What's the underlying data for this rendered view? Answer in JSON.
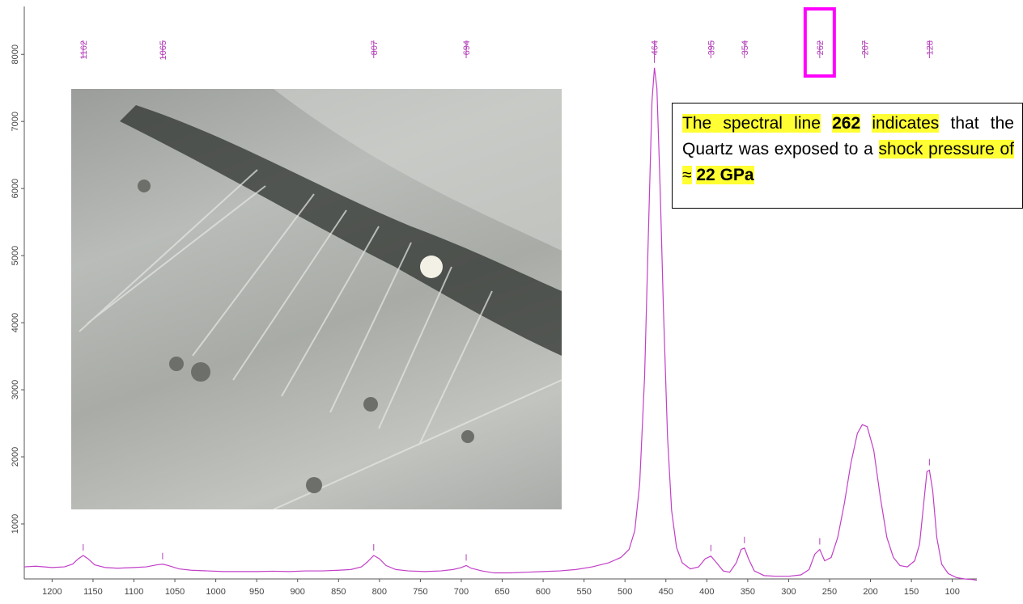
{
  "chart_data": {
    "type": "line",
    "xlim": [
      1234,
      70
    ],
    "ylim": [
      180,
      8690
    ],
    "xticks": [
      1200,
      1150,
      1100,
      1050,
      1000,
      950,
      900,
      850,
      800,
      750,
      700,
      650,
      600,
      550,
      500,
      450,
      400,
      350,
      300,
      250,
      200,
      150,
      100
    ],
    "yticks": [
      1000,
      2000,
      3000,
      4000,
      5000,
      6000,
      7000,
      8000
    ],
    "series": [
      {
        "name": "Raman spectrum",
        "color": "#c23fc8",
        "x": [
          1234,
          1220,
          1200,
          1185,
          1175,
          1168,
          1162,
          1156,
          1148,
          1135,
          1120,
          1100,
          1085,
          1072,
          1065,
          1058,
          1045,
          1030,
          1010,
          990,
          970,
          950,
          930,
          910,
          890,
          870,
          850,
          835,
          822,
          815,
          807,
          800,
          792,
          780,
          765,
          745,
          725,
          710,
          700,
          694,
          688,
          675,
          660,
          640,
          620,
          600,
          580,
          560,
          540,
          520,
          505,
          495,
          488,
          482,
          476,
          471,
          467,
          464,
          461,
          457,
          453,
          448,
          443,
          437,
          430,
          420,
          410,
          402,
          395,
          388,
          380,
          372,
          364,
          358,
          354,
          349,
          342,
          330,
          315,
          300,
          285,
          275,
          268,
          262,
          256,
          248,
          240,
          232,
          224,
          216,
          210,
          204,
          196,
          188,
          180,
          172,
          164,
          155,
          146,
          140,
          135,
          131,
          128,
          124,
          119,
          113,
          105,
          95,
          85,
          75,
          70
        ],
        "values": [
          360,
          370,
          350,
          360,
          400,
          480,
          530,
          480,
          390,
          350,
          340,
          350,
          360,
          390,
          400,
          380,
          330,
          310,
          300,
          290,
          290,
          290,
          295,
          290,
          300,
          300,
          310,
          320,
          360,
          430,
          530,
          480,
          380,
          320,
          300,
          290,
          300,
          320,
          350,
          380,
          340,
          300,
          270,
          270,
          280,
          290,
          300,
          320,
          360,
          420,
          500,
          620,
          900,
          1600,
          3200,
          5500,
          7300,
          7800,
          7500,
          6000,
          4200,
          2300,
          1200,
          650,
          420,
          330,
          360,
          480,
          520,
          420,
          300,
          280,
          420,
          620,
          640,
          480,
          300,
          230,
          220,
          220,
          240,
          320,
          550,
          620,
          450,
          500,
          800,
          1300,
          1900,
          2350,
          2480,
          2450,
          2100,
          1400,
          800,
          500,
          380,
          360,
          450,
          700,
          1300,
          1780,
          1800,
          1500,
          800,
          400,
          260,
          200,
          180,
          170,
          160
        ]
      }
    ],
    "peaks": [
      1162,
      1065,
      807,
      694,
      464,
      395,
      354,
      262,
      207,
      128
    ],
    "peak_color": "#b33fb8",
    "boxed_peak": 262,
    "box_color": "#ff00ff",
    "annotation": [
      {
        "text": "The spectral line",
        "bold": false,
        "highlight": true
      },
      {
        "text": "262",
        "bold": true,
        "highlight": true
      },
      {
        "text": "indicates",
        "bold": false,
        "highlight": true
      },
      {
        "text": "that the Quartz was exposed to a",
        "bold": false,
        "highlight": false
      },
      {
        "text": "shock pressure of ≈",
        "bold": false,
        "highlight": true
      },
      {
        "text": "22 GPa",
        "bold": true,
        "highlight": true
      }
    ]
  }
}
